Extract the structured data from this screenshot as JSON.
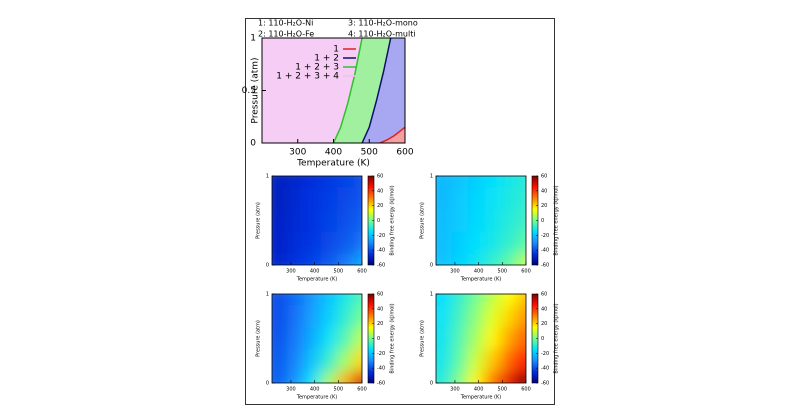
{
  "chart_data": [
    {
      "type": "area",
      "annotations": [
        "1: 110-H₂O-Ni",
        "2: 110-H₂O-Fe",
        "3: 110-H₂O-mono",
        "4: 110-H₂O-multi"
      ],
      "xlabel": "Temperature (K)",
      "ylabel": "Pressure (atm)",
      "xlim": [
        200,
        600
      ],
      "ylim": [
        0,
        1
      ],
      "xticks": [
        300,
        400,
        500,
        600
      ],
      "yticks": [
        0,
        0.5,
        1
      ],
      "series": [
        {
          "name": "1",
          "color": "#e02020",
          "fill": "#f4a0a0",
          "x": [
            530,
            550,
            570,
            585,
            600
          ],
          "values": [
            0,
            0.03,
            0.07,
            0.11,
            0.15
          ]
        },
        {
          "name": "1 + 2",
          "color": "#10106a",
          "fill": "#a8a8f2",
          "x": [
            480,
            500,
            520,
            540,
            560
          ],
          "values": [
            0,
            0.15,
            0.4,
            0.68,
            1
          ]
        },
        {
          "name": "1 + 2 + 3",
          "color": "#30c030",
          "fill": "#a0f0a0",
          "x": [
            400,
            420,
            440,
            460,
            480
          ],
          "values": [
            0,
            0.15,
            0.38,
            0.66,
            1
          ]
        },
        {
          "name": "1 + 2 + 3 + 4",
          "color": "#f0c0f0",
          "fill": "#f5cdf5"
        }
      ]
    },
    {
      "type": "heatmap",
      "xlabel": "Temperature (K)",
      "ylabel": "Pressure (atm)",
      "colorbar_label": "Binding free energy (kJ/mol)",
      "xlim": [
        220,
        600
      ],
      "ylim": [
        0,
        1
      ],
      "xticks": [
        300,
        400,
        500,
        600
      ],
      "yticks": [
        0,
        1
      ],
      "clim": [
        -60,
        60
      ],
      "cticks": [
        -60,
        -40,
        -20,
        0,
        20,
        40,
        60
      ],
      "colormap": [
        "#00007f",
        "#0030e0",
        "#1a8cff",
        "#00e0ff",
        "#70ff90",
        "#ffff00",
        "#ff8000",
        "#ff1000",
        "#7f0000"
      ],
      "x": [
        250,
        320,
        390,
        460,
        530,
        600
      ],
      "y": [
        1,
        0.75,
        0.5,
        0.25,
        0
      ],
      "z": [
        [
          -50,
          -48,
          -46,
          -44,
          -42,
          -40
        ],
        [
          -50,
          -47,
          -45,
          -43,
          -41,
          -39
        ],
        [
          -49,
          -47,
          -45,
          -42,
          -40,
          -37
        ],
        [
          -49,
          -46,
          -44,
          -41,
          -38,
          -34
        ],
        [
          -48,
          -45,
          -42,
          -38,
          -33,
          -25
        ]
      ]
    },
    {
      "type": "heatmap",
      "xlabel": "Temperature (K)",
      "ylabel": "Pressure (atm)",
      "colorbar_label": "Binding free energy (kJ/mol)",
      "xlim": [
        220,
        600
      ],
      "ylim": [
        0,
        1
      ],
      "xticks": [
        300,
        400,
        500,
        600
      ],
      "yticks": [
        0,
        1
      ],
      "clim": [
        -60,
        60
      ],
      "cticks": [
        -60,
        -40,
        -20,
        0,
        20,
        40,
        60
      ],
      "colormap": [
        "#00007f",
        "#0030e0",
        "#1a8cff",
        "#00e0ff",
        "#70ff90",
        "#ffff00",
        "#ff8000",
        "#ff1000",
        "#7f0000"
      ],
      "x": [
        250,
        320,
        390,
        460,
        530,
        600
      ],
      "y": [
        1,
        0.75,
        0.5,
        0.25,
        0
      ],
      "z": [
        [
          -22,
          -20,
          -18,
          -15,
          -12,
          -10
        ],
        [
          -22,
          -19,
          -17,
          -14,
          -11,
          -9
        ],
        [
          -21,
          -19,
          -16,
          -13,
          -10,
          -7
        ],
        [
          -21,
          -18,
          -15,
          -12,
          -8,
          -3
        ],
        [
          -20,
          -17,
          -13,
          -8,
          -2,
          8
        ]
      ]
    },
    {
      "type": "heatmap",
      "xlabel": "Temperature (K)",
      "ylabel": "Pressure (atm)",
      "colorbar_label": "Binding free energy (kJ/mol)",
      "xlim": [
        220,
        600
      ],
      "ylim": [
        0,
        1
      ],
      "xticks": [
        300,
        400,
        500,
        600
      ],
      "yticks": [
        0,
        1
      ],
      "clim": [
        -60,
        60
      ],
      "cticks": [
        -60,
        -40,
        -20,
        0,
        20,
        40,
        60
      ],
      "colormap": [
        "#00007f",
        "#0030e0",
        "#1a8cff",
        "#00e0ff",
        "#70ff90",
        "#ffff00",
        "#ff8000",
        "#ff1000",
        "#7f0000"
      ],
      "x": [
        250,
        320,
        390,
        460,
        530,
        600
      ],
      "y": [
        1,
        0.75,
        0.5,
        0.25,
        0
      ],
      "z": [
        [
          -40,
          -35,
          -28,
          -20,
          -12,
          -5
        ],
        [
          -40,
          -34,
          -26,
          -18,
          -9,
          0
        ],
        [
          -39,
          -33,
          -24,
          -14,
          -4,
          8
        ],
        [
          -38,
          -31,
          -20,
          -8,
          5,
          20
        ],
        [
          -37,
          -28,
          -14,
          5,
          25,
          50
        ]
      ]
    },
    {
      "type": "heatmap",
      "xlabel": "Temperature (K)",
      "ylabel": "Pressure (atm)",
      "colorbar_label": "Binding free energy (kJ/mol)",
      "xlim": [
        220,
        600
      ],
      "ylim": [
        0,
        1
      ],
      "xticks": [
        300,
        400,
        500,
        600
      ],
      "yticks": [
        0,
        1
      ],
      "clim": [
        -60,
        60
      ],
      "cticks": [
        -60,
        -40,
        -20,
        0,
        20,
        40,
        60
      ],
      "colormap": [
        "#00007f",
        "#0030e0",
        "#1a8cff",
        "#00e0ff",
        "#70ff90",
        "#ffff00",
        "#ff8000",
        "#ff1000",
        "#7f0000"
      ],
      "x": [
        250,
        320,
        390,
        460,
        530,
        600
      ],
      "y": [
        1,
        0.75,
        0.5,
        0.25,
        0
      ],
      "z": [
        [
          -15,
          -8,
          0,
          8,
          15,
          22
        ],
        [
          -14,
          -6,
          3,
          12,
          20,
          28
        ],
        [
          -13,
          -4,
          6,
          16,
          26,
          35
        ],
        [
          -12,
          -2,
          10,
          22,
          34,
          45
        ],
        [
          -10,
          2,
          16,
          32,
          48,
          60
        ]
      ]
    }
  ]
}
